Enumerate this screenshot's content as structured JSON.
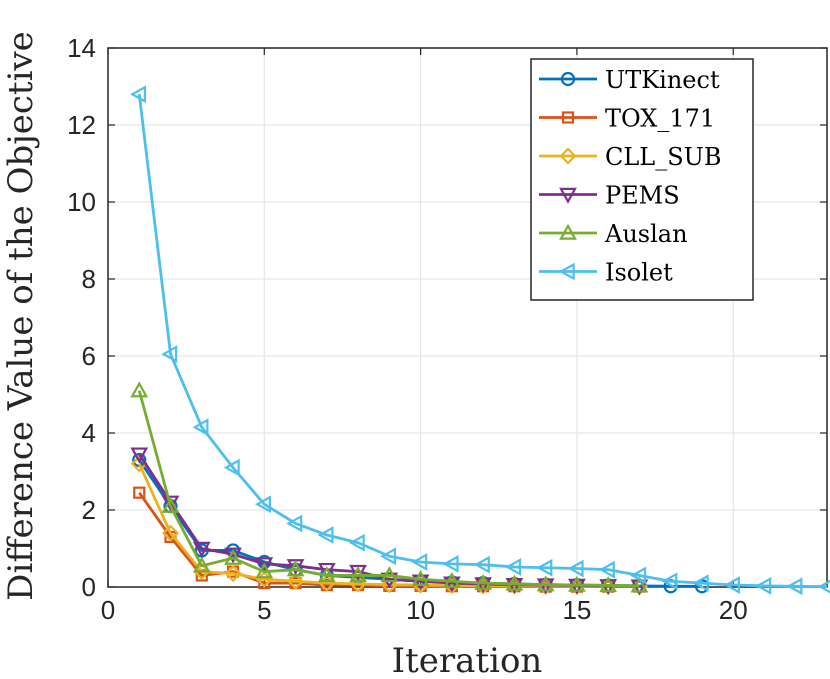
{
  "chart_data": {
    "type": "line",
    "xlabel": "Iteration",
    "ylabel": "Difference Value of the Objective",
    "xlim": [
      0,
      23
    ],
    "ylim": [
      0,
      14
    ],
    "xticks": [
      "0",
      "5",
      "10",
      "15",
      "20"
    ],
    "yticks": [
      "0",
      "2",
      "4",
      "6",
      "8",
      "10",
      "12",
      "14"
    ],
    "grid": true,
    "legend_position": "top-right",
    "series": [
      {
        "name": "UTKinect",
        "color": "#0072BD",
        "marker": "circle",
        "x": [
          1,
          2,
          3,
          4,
          5,
          6,
          7,
          8,
          9,
          10,
          11,
          12,
          13,
          14,
          15,
          16,
          17,
          18,
          19
        ],
        "y": [
          3.3,
          2.1,
          0.95,
          0.95,
          0.65,
          0.45,
          0.3,
          0.25,
          0.2,
          0.15,
          0.12,
          0.1,
          0.08,
          0.06,
          0.05,
          0.04,
          0.03,
          0.02,
          0.02
        ]
      },
      {
        "name": "TOX_171",
        "color": "#D95319",
        "marker": "square",
        "x": [
          1,
          2,
          3,
          4,
          5,
          6,
          7,
          8,
          9,
          10,
          11,
          12,
          13,
          14,
          15,
          16,
          17
        ],
        "y": [
          2.45,
          1.3,
          0.3,
          0.4,
          0.1,
          0.1,
          0.05,
          0.05,
          0.03,
          0.03,
          0.02,
          0.02,
          0.02,
          0.01,
          0.01,
          0.01,
          0.01
        ]
      },
      {
        "name": "CLL_SUB",
        "color": "#EDB120",
        "marker": "diamond",
        "x": [
          1,
          2,
          3,
          4,
          5,
          6,
          7,
          8,
          9,
          10,
          11,
          12,
          13,
          14,
          15,
          16,
          17
        ],
        "y": [
          3.2,
          1.4,
          0.4,
          0.35,
          0.2,
          0.15,
          0.1,
          0.08,
          0.06,
          0.05,
          0.04,
          0.03,
          0.03,
          0.02,
          0.02,
          0.02,
          0.01
        ]
      },
      {
        "name": "PEMS",
        "color": "#7E2F8E",
        "marker": "triangle-down",
        "x": [
          1,
          2,
          3,
          4,
          5,
          6,
          7,
          8,
          9,
          10,
          11,
          12,
          13,
          14,
          15,
          16,
          17
        ],
        "y": [
          3.45,
          2.2,
          1.0,
          0.85,
          0.6,
          0.55,
          0.45,
          0.4,
          0.2,
          0.15,
          0.1,
          0.08,
          0.06,
          0.05,
          0.04,
          0.03,
          0.02
        ]
      },
      {
        "name": "Auslan",
        "color": "#77AC30",
        "marker": "triangle-up",
        "x": [
          1,
          2,
          3,
          4,
          5,
          6,
          7,
          8,
          9,
          10,
          11,
          12,
          13,
          14,
          15,
          16,
          17
        ],
        "y": [
          5.1,
          2.1,
          0.55,
          0.75,
          0.4,
          0.45,
          0.3,
          0.3,
          0.3,
          0.2,
          0.15,
          0.1,
          0.08,
          0.06,
          0.05,
          0.04,
          0.03
        ]
      },
      {
        "name": "Isolet",
        "color": "#4DBEEE",
        "marker": "triangle-left",
        "x": [
          1,
          2,
          3,
          4,
          5,
          6,
          7,
          8,
          9,
          10,
          11,
          12,
          13,
          14,
          15,
          16,
          17,
          18,
          19,
          20,
          21,
          22,
          23
        ],
        "y": [
          12.8,
          6.05,
          4.15,
          3.1,
          2.15,
          1.65,
          1.35,
          1.15,
          0.8,
          0.65,
          0.6,
          0.58,
          0.52,
          0.5,
          0.48,
          0.45,
          0.3,
          0.15,
          0.1,
          0.05,
          0.03,
          0.02,
          0.01
        ]
      }
    ]
  }
}
